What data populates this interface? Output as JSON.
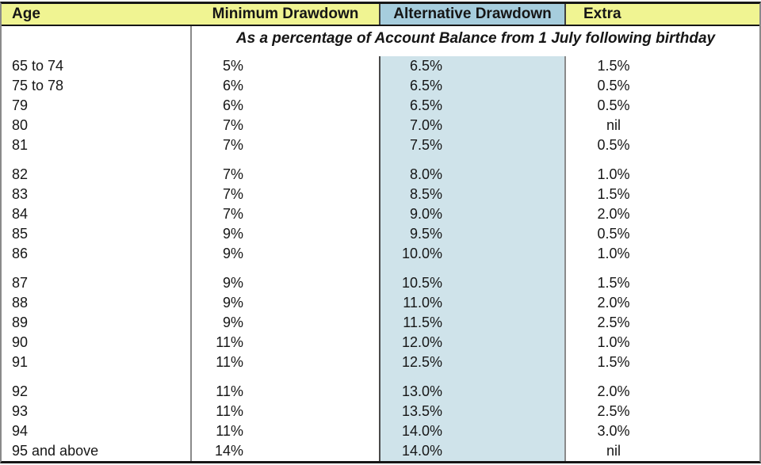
{
  "table": {
    "headers": {
      "age": "Age",
      "minimum_drawdown": "Minimum Drawdown",
      "alternative_drawdown": "Alternative Drawdown",
      "extra": "Extra"
    },
    "subtitle": "As a percentage of Account Balance from 1 July following birthday",
    "groups": [
      [
        {
          "age": "65 to 74",
          "min": "5%",
          "alt": "6.5%",
          "extra": "1.5%"
        },
        {
          "age": "75 to 78",
          "min": "6%",
          "alt": "6.5%",
          "extra": "0.5%"
        },
        {
          "age": "79",
          "min": "6%",
          "alt": "6.5%",
          "extra": "0.5%"
        },
        {
          "age": "80",
          "min": "7%",
          "alt": "7.0%",
          "extra": "nil"
        },
        {
          "age": "81",
          "min": "7%",
          "alt": "7.5%",
          "extra": "0.5%"
        }
      ],
      [
        {
          "age": "82",
          "min": "7%",
          "alt": "8.0%",
          "extra": "1.0%"
        },
        {
          "age": "83",
          "min": "7%",
          "alt": "8.5%",
          "extra": "1.5%"
        },
        {
          "age": "84",
          "min": "7%",
          "alt": "9.0%",
          "extra": "2.0%"
        },
        {
          "age": "85",
          "min": "9%",
          "alt": "9.5%",
          "extra": "0.5%"
        },
        {
          "age": "86",
          "min": "9%",
          "alt": "10.0%",
          "extra": "1.0%"
        }
      ],
      [
        {
          "age": "87",
          "min": "9%",
          "alt": "10.5%",
          "extra": "1.5%"
        },
        {
          "age": "88",
          "min": "9%",
          "alt": "11.0%",
          "extra": "2.0%"
        },
        {
          "age": "89",
          "min": "9%",
          "alt": "11.5%",
          "extra": "2.5%"
        },
        {
          "age": "90",
          "min": "11%",
          "alt": "12.0%",
          "extra": "1.0%"
        },
        {
          "age": "91",
          "min": "11%",
          "alt": "12.5%",
          "extra": "1.5%"
        }
      ],
      [
        {
          "age": "92",
          "min": "11%",
          "alt": "13.0%",
          "extra": "2.0%"
        },
        {
          "age": "93",
          "min": "11%",
          "alt": "13.5%",
          "extra": "2.5%"
        },
        {
          "age": "94",
          "min": "11%",
          "alt": "14.0%",
          "extra": "3.0%"
        },
        {
          "age": "95 and above",
          "min": "14%",
          "alt": "14.0%",
          "extra": "nil"
        }
      ]
    ],
    "colors": {
      "header_yellow": "#f0f492",
      "header_blue": "#a6cddd",
      "column_blue": "#cfe3ea"
    }
  }
}
